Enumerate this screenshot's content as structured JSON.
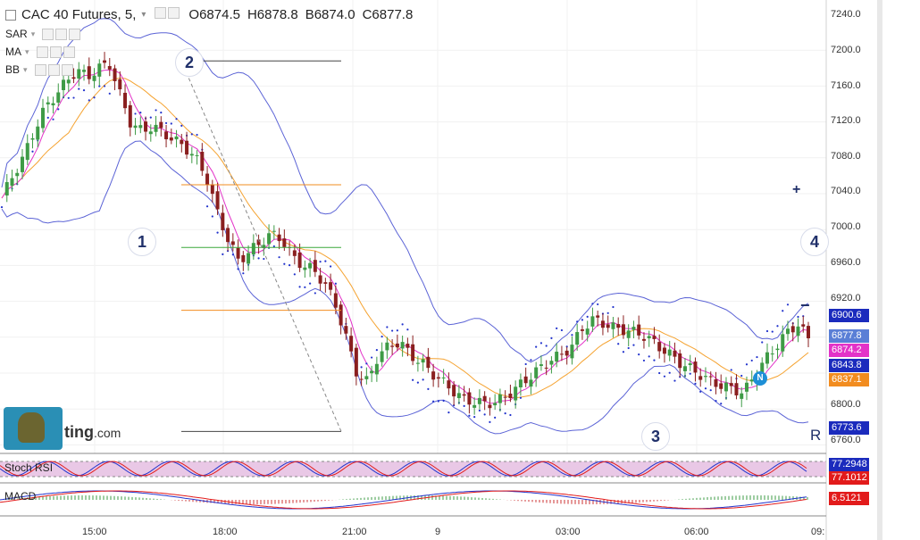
{
  "header": {
    "title": "CAC 40 Futures, 5,",
    "open": "O6874.5",
    "high": "H6878.8",
    "low": "B6874.0",
    "close": "C6877.8"
  },
  "indicators": [
    "SAR",
    "MA",
    "BB"
  ],
  "logo": {
    "text": "ting",
    "suffix": ".com"
  },
  "waves": [
    "1",
    "2",
    "3",
    "4"
  ],
  "controls": {
    "plus": "+",
    "minus": "−",
    "reset": "R"
  },
  "price_axis": [
    "7240.0",
    "7200.0",
    "7160.0",
    "7120.0",
    "7080.0",
    "7040.0",
    "7000.0",
    "6960.0",
    "6920.0",
    "6800.0",
    "6760.0"
  ],
  "price_tags": [
    {
      "label": "6900.6",
      "color": "#1b2bbd"
    },
    {
      "label": "6877.8",
      "color": "#5a7fd6"
    },
    {
      "label": "6874.2",
      "color": "#e332c8"
    },
    {
      "label": "6843.8",
      "color": "#1b2bbd"
    },
    {
      "label": "6837.1",
      "color": "#f28c1f"
    },
    {
      "label": "6773.6",
      "color": "#1b2bbd"
    }
  ],
  "stoch": {
    "label": "Stoch RSI",
    "v1": "77.2948",
    "v2": "77.1012"
  },
  "macd": {
    "label": "MACD",
    "v1": "6.5121"
  },
  "time_axis": [
    "15:00",
    "18:00",
    "21:00",
    "9",
    "03:00",
    "06:00",
    "09:"
  ],
  "chart_data": {
    "type": "candlestick",
    "title": "CAC 40 Futures, 5,",
    "ylim": [
      6740,
      7255
    ],
    "price": [
      7035,
      7060,
      7080,
      7110,
      7135,
      7150,
      7165,
      7178,
      7170,
      7180,
      7185,
      7150,
      7118,
      7110,
      7115,
      7108,
      7100,
      7092,
      7080,
      7060,
      7020,
      6990,
      6965,
      6975,
      6985,
      6995,
      6990,
      6970,
      6960,
      6955,
      6940,
      6918,
      6880,
      6840,
      6830,
      6860,
      6870,
      6875,
      6860,
      6852,
      6840,
      6830,
      6820,
      6810,
      6808,
      6806,
      6808,
      6815,
      6825,
      6835,
      6845,
      6855,
      6860,
      6870,
      6890,
      6900,
      6895,
      6890,
      6888,
      6885,
      6880,
      6870,
      6862,
      6852,
      6845,
      6838,
      6830,
      6826,
      6822,
      6818,
      6838,
      6855,
      6870,
      6885,
      6895,
      6878
    ],
    "fib_levels": [
      7188,
      7050,
      6980,
      6910,
      6775
    ],
    "series": [
      {
        "name": "SAR"
      },
      {
        "name": "MA"
      },
      {
        "name": "BB"
      }
    ]
  }
}
